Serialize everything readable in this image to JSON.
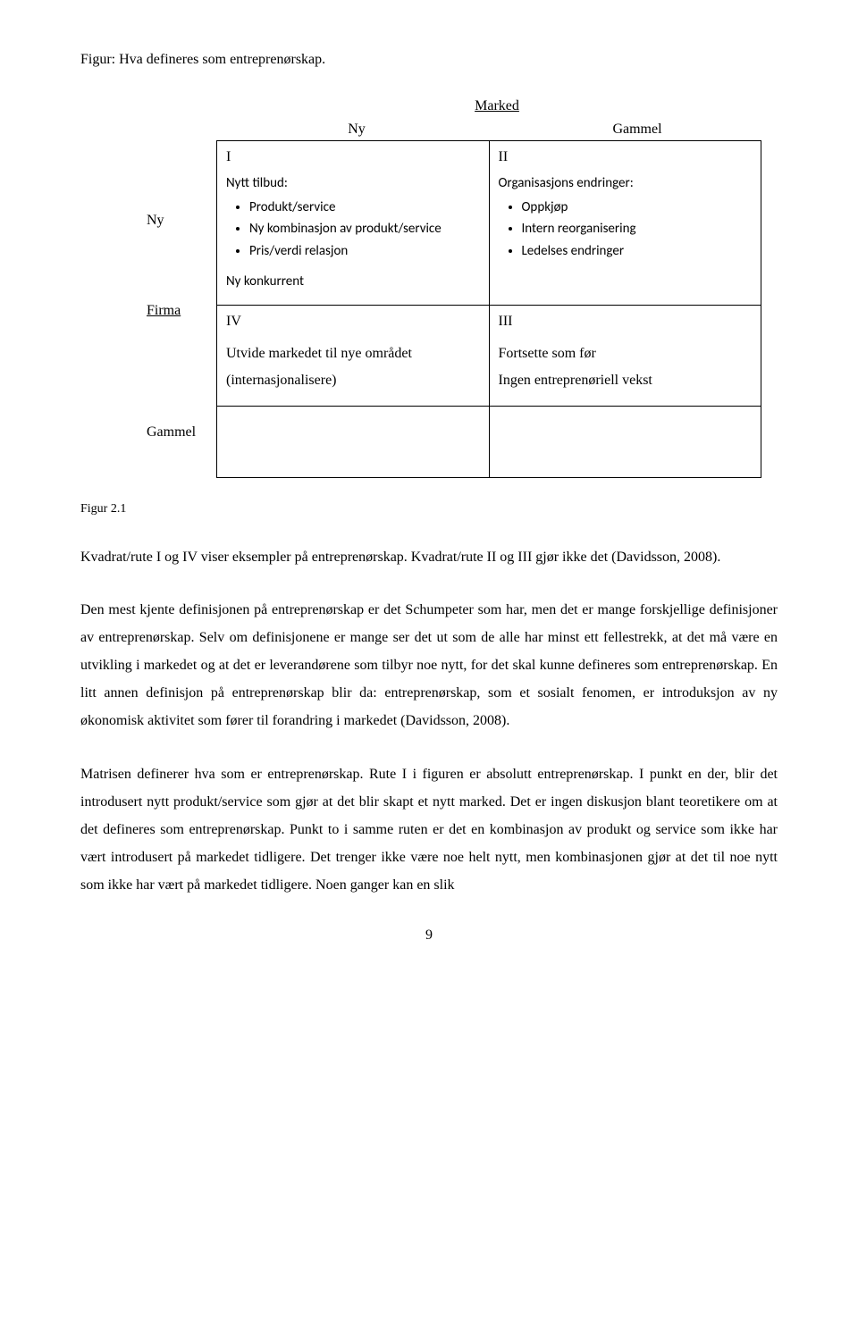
{
  "figure_caption": "Figur: Hva defineres som entreprenørskap.",
  "axes": {
    "market_title": "Marked",
    "col_ny": "Ny",
    "col_gammel": "Gammel",
    "row_ny": "Ny",
    "firma": "Firma",
    "row_gammel": "Gammel"
  },
  "cells": {
    "I": {
      "num": "I",
      "heading": "Nytt tilbud:",
      "bullets": [
        "Produkt/service",
        "Ny kombinasjon av produkt/service",
        "Pris/verdi relasjon"
      ],
      "sub": "Ny konkurrent"
    },
    "II": {
      "num": "II",
      "heading": "Organisasjons endringer:",
      "bullets": [
        "Oppkjøp",
        "Intern reorganisering",
        "Ledelses endringer"
      ]
    },
    "IV": {
      "num": "IV",
      "line1": "Utvide markedet til nye området",
      "line2": "(internasjonalisere)"
    },
    "III": {
      "num": "III",
      "line1": "Fortsette som før",
      "line2": "Ingen entreprenøriell vekst"
    }
  },
  "fig_label": "Figur 2.1",
  "paragraphs": {
    "p1": "Kvadrat/rute I og IV viser eksempler på entreprenørskap. Kvadrat/rute II og III gjør ikke det (Davidsson, 2008).",
    "p2": "Den mest kjente definisjonen på entreprenørskap er det Schumpeter som har, men det er mange forskjellige definisjoner av entreprenørskap. Selv om definisjonene er mange ser det ut som de alle har minst ett fellestrekk, at det må være en utvikling i markedet og at det er leverandørene som tilbyr noe nytt, for det skal kunne defineres som entreprenørskap. En litt annen definisjon på entreprenørskap blir da: entreprenørskap, som et sosialt fenomen, er introduksjon av ny økonomisk aktivitet som fører til forandring i markedet (Davidsson, 2008).",
    "p3": "Matrisen definerer hva som er entreprenørskap. Rute I i figuren er absolutt entreprenørskap. I punkt en der, blir det introdusert nytt produkt/service som gjør at det blir skapt et nytt marked. Det er ingen diskusjon blant teoretikere om at det defineres som entreprenørskap. Punkt to i samme ruten er det en kombinasjon av produkt og service som ikke har vært introdusert på markedet tidligere. Det trenger ikke være noe helt nytt, men kombinasjonen gjør at det til noe nytt som ikke har vært på markedet tidligere. Noen ganger kan en slik"
  },
  "page_number": "9"
}
